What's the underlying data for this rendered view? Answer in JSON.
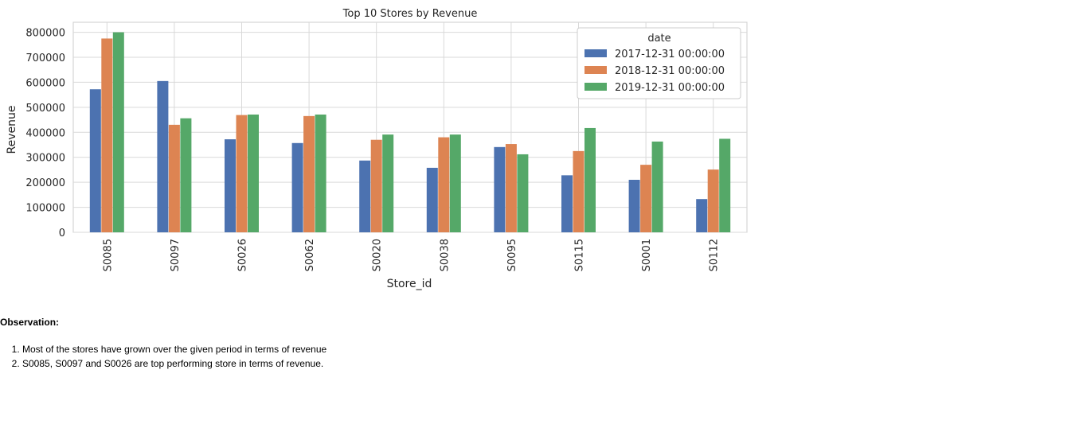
{
  "chart_data": {
    "type": "bar",
    "title": "Top 10 Stores by Revenue",
    "xlabel": "Store_id",
    "ylabel": "Revenue",
    "categories": [
      "S0085",
      "S0097",
      "S0026",
      "S0062",
      "S0020",
      "S0038",
      "S0095",
      "S0115",
      "S0001",
      "S0112"
    ],
    "series": [
      {
        "name": "2017-12-31 00:00:00",
        "color": "#4c72b0",
        "values": [
          572000,
          605000,
          372000,
          357000,
          287000,
          258000,
          341000,
          228000,
          210000,
          133000
        ]
      },
      {
        "name": "2018-12-31 00:00:00",
        "color": "#dd8452",
        "values": [
          775000,
          430000,
          469000,
          465000,
          370000,
          380000,
          353000,
          325000,
          270000,
          251000
        ]
      },
      {
        "name": "2019-12-31 00:00:00",
        "color": "#55a868",
        "values": [
          800000,
          456000,
          471000,
          471000,
          391000,
          391000,
          312000,
          417000,
          363000,
          374000
        ]
      }
    ],
    "yticks": [
      "0",
      "100000",
      "200000",
      "300000",
      "400000",
      "500000",
      "600000",
      "700000",
      "800000"
    ],
    "ylim": [
      0,
      840000
    ],
    "grid": true,
    "legend_title": "date",
    "legend_position": "upper right"
  },
  "observation": {
    "title": "Observation:",
    "items": [
      "Most of the stores have grown over the given period in terms of revenue",
      "S0085, S0097 and S0026 are top performing store in terms of revenue."
    ]
  }
}
